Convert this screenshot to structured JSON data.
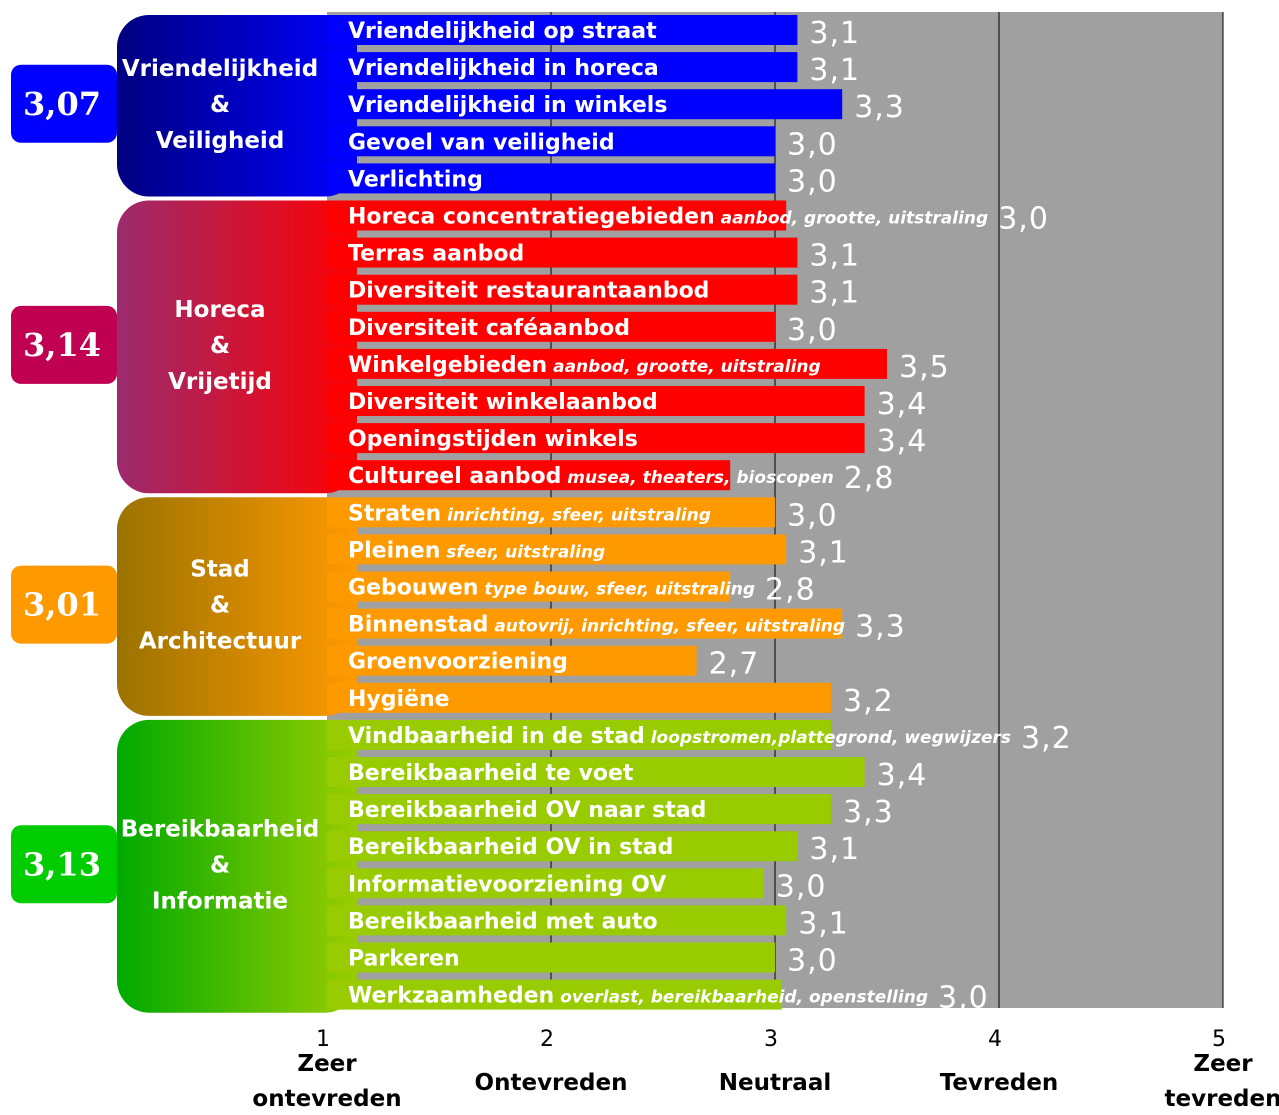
{
  "chart_data": {
    "type": "bar",
    "orientation": "horizontal",
    "xlim": [
      1,
      5
    ],
    "grid": true,
    "x_ticks": [
      {
        "value": 1,
        "label": "1",
        "words": [
          "Zeer",
          "ontevreden"
        ]
      },
      {
        "value": 2,
        "label": "2",
        "words": [
          "Ontevreden"
        ]
      },
      {
        "value": 3,
        "label": "3",
        "words": [
          "Neutraal"
        ]
      },
      {
        "value": 4,
        "label": "4",
        "words": [
          "Tevreden"
        ]
      },
      {
        "value": 5,
        "label": "5",
        "words": [
          "Zeer",
          "tevreden"
        ]
      }
    ],
    "groups": [
      {
        "lines": [
          "Vriendelijkheid",
          "&",
          "Veiligheid"
        ],
        "score": "3,07",
        "color": "#0000ff",
        "gradient": [
          "#000080",
          "#0000ff"
        ],
        "badge_color": "#0000ff",
        "items": [
          {
            "label": "Vriendelijkheid op straat",
            "sub": "",
            "value": 3.1,
            "value_label": "3,1"
          },
          {
            "label": "Vriendelijkheid in horeca",
            "sub": "",
            "value": 3.1,
            "value_label": "3,1"
          },
          {
            "label": "Vriendelijkheid in winkels",
            "sub": "",
            "value": 3.3,
            "value_label": "3,3"
          },
          {
            "label": "Gevoel van veiligheid",
            "sub": "",
            "value": 3.0,
            "value_label": "3,0"
          },
          {
            "label": "Verlichting",
            "sub": "",
            "value": 3.0,
            "value_label": "3,0"
          }
        ]
      },
      {
        "lines": [
          "Horeca",
          "&",
          "Vrijetijd"
        ],
        "score": "3,14",
        "color": "#ff0000",
        "gradient": [
          "#9b2b6e",
          "#ff0000"
        ],
        "badge_color": "#c00050",
        "items": [
          {
            "label": "Horeca concentratiegebieden",
            "sub": "aanbod, grootte, uitstraling",
            "value": 3.05,
            "value_label": "3,0"
          },
          {
            "label": "Terras aanbod",
            "sub": "",
            "value": 3.1,
            "value_label": "3,1"
          },
          {
            "label": "Diversiteit restaurantaanbod",
            "sub": "",
            "value": 3.1,
            "value_label": "3,1"
          },
          {
            "label": "Diversiteit caféaanbod",
            "sub": "",
            "value": 3.0,
            "value_label": "3,0"
          },
          {
            "label": "Winkelgebieden",
            "sub": "aanbod, grootte, uitstraling",
            "value": 3.5,
            "value_label": "3,5"
          },
          {
            "label": "Diversiteit winkelaanbod",
            "sub": "",
            "value": 3.4,
            "value_label": "3,4"
          },
          {
            "label": "Openingstijden winkels",
            "sub": "",
            "value": 3.4,
            "value_label": "3,4"
          },
          {
            "label": "Cultureel aanbod",
            "sub": "musea, theaters, bioscopen",
            "value": 2.8,
            "value_label": "2,8"
          }
        ]
      },
      {
        "lines": [
          "Stad",
          "&",
          "Architectuur"
        ],
        "score": "3,01",
        "color": "#ff9900",
        "gradient": [
          "#9b7300",
          "#ff9900"
        ],
        "badge_color": "#ff9900",
        "items": [
          {
            "label": "Straten",
            "sub": "inrichting, sfeer, uitstraling",
            "value": 3.0,
            "value_label": "3,0"
          },
          {
            "label": "Pleinen",
            "sub": "sfeer, uitstraling",
            "value": 3.05,
            "value_label": "3,1"
          },
          {
            "label": "Gebouwen",
            "sub": "type bouw, sfeer, uitstraling",
            "value": 2.8,
            "value_label": "2,8"
          },
          {
            "label": "Binnenstad",
            "sub": "autovrij, inrichting, sfeer, uitstraling",
            "value": 3.3,
            "value_label": "3,3"
          },
          {
            "label": "Groenvoorziening",
            "sub": "",
            "value": 2.65,
            "value_label": "2,7"
          },
          {
            "label": "Hygiëne",
            "sub": "",
            "value": 3.25,
            "value_label": "3,2"
          }
        ]
      },
      {
        "lines": [
          "Bereikbaarheid",
          "&",
          "Informatie"
        ],
        "score": "3,13",
        "color": "#99cc00",
        "gradient": [
          "#00aa00",
          "#99cc00"
        ],
        "badge_color": "#00cc00",
        "items": [
          {
            "label": "Vindbaarheid in de stad",
            "sub": "loopstromen,plattegrond, wegwijzers",
            "value": 3.25,
            "value_label": "3,2"
          },
          {
            "label": "Bereikbaarheid te voet",
            "sub": "",
            "value": 3.4,
            "value_label": "3,4"
          },
          {
            "label": "Bereikbaarheid OV naar stad",
            "sub": "",
            "value": 3.25,
            "value_label": "3,3"
          },
          {
            "label": "Bereikbaarheid OV in stad",
            "sub": "",
            "value": 3.1,
            "value_label": "3,1"
          },
          {
            "label": "Informatievoorziening OV",
            "sub": "",
            "value": 2.95,
            "value_label": "3,0"
          },
          {
            "label": "Bereikbaarheid met  auto",
            "sub": "",
            "value": 3.05,
            "value_label": "3,1"
          },
          {
            "label": "Parkeren",
            "sub": "",
            "value": 3.0,
            "value_label": "3,0"
          },
          {
            "label": "Werkzaamheden",
            "sub": "overlast, bereikbaarheid, openstelling",
            "value": 3.03,
            "value_label": "3,0"
          }
        ]
      }
    ]
  }
}
